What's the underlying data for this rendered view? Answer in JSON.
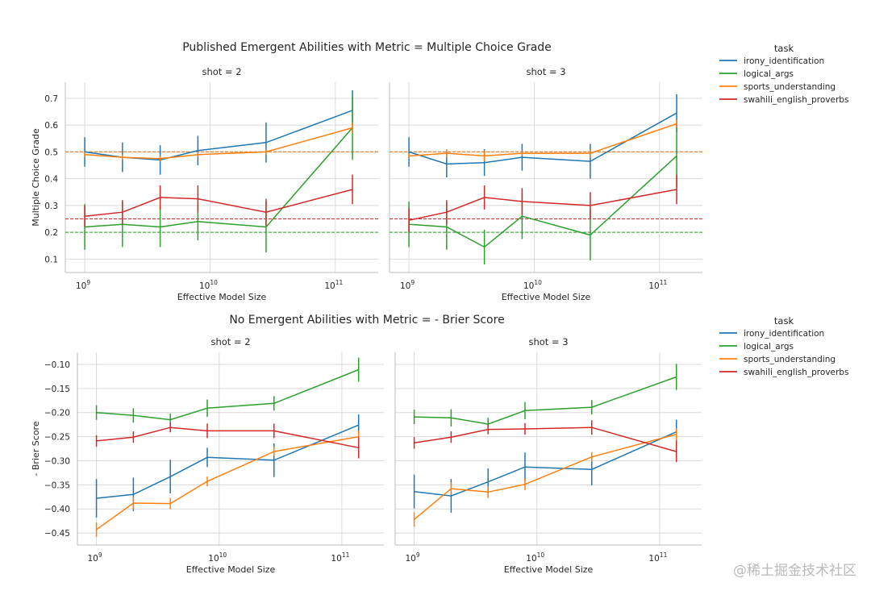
{
  "watermark": "@稀土掘金技术社区",
  "colors": {
    "irony_identification": "#1f77b4",
    "logical_args": "#2ca02c",
    "sports_understanding": "#ff7f0e",
    "swahili_english_proverbs": "#d62728",
    "grid": "#d9d9d9",
    "text": "#262626"
  },
  "chart_data": [
    {
      "type": "line",
      "title": "Published Emergent Abilities with Metric = Multiple Choice Grade",
      "ylabel": "Multiple Choice Grade",
      "xlabel": "Effective Model Size",
      "xscale": "log",
      "xlim": [
        700000000.0,
        220000000000.0
      ],
      "ylim": [
        0.05,
        0.76
      ],
      "yticks": [
        0.1,
        0.2,
        0.3,
        0.4,
        0.5,
        0.6,
        0.7
      ],
      "ytick_labels": [
        "0.1",
        "0.2",
        "0.3",
        "0.4",
        "0.5",
        "0.6",
        "0.7"
      ],
      "xticks": [
        1000000000.0,
        10000000000.0,
        100000000000.0
      ],
      "xtick_labels": [
        {
          "base": "10",
          "exp": "9"
        },
        {
          "base": "10",
          "exp": "10"
        },
        {
          "base": "10",
          "exp": "11"
        }
      ],
      "x": [
        1000000000.0,
        2000000000.0,
        4000000000.0,
        8000000000.0,
        28000000000.0,
        137000000000.0
      ],
      "legend": {
        "title": "task",
        "entries": [
          "irony_identification",
          "logical_args",
          "sports_understanding",
          "swahili_english_proverbs"
        ]
      },
      "reference_lines": [
        {
          "y": 0.5,
          "series": "irony_identification"
        },
        {
          "y": 0.5,
          "series": "sports_understanding"
        },
        {
          "y": 0.2,
          "series": "logical_args"
        },
        {
          "y": 0.25,
          "series": "swahili_english_proverbs"
        }
      ],
      "panels": [
        {
          "title": "shot = 2",
          "series": [
            {
              "name": "irony_identification",
              "values": [
                0.5,
                0.48,
                0.47,
                0.505,
                0.535,
                0.655
              ],
              "err": [
                0.055,
                0.055,
                0.055,
                0.055,
                0.075,
                0.075
              ]
            },
            {
              "name": "logical_args",
              "values": [
                0.22,
                0.23,
                0.22,
                0.24,
                0.22,
                0.59
              ],
              "err": [
                0.085,
                0.085,
                0.075,
                0.07,
                0.095,
                0.12
              ]
            },
            {
              "name": "sports_understanding",
              "values": [
                0.49,
                0.48,
                0.475,
                0.49,
                0.5,
                0.59
              ],
              "err": [
                0.01,
                0.01,
                0.01,
                0.01,
                0.01,
                0.02
              ]
            },
            {
              "name": "swahili_english_proverbs",
              "values": [
                0.26,
                0.275,
                0.33,
                0.325,
                0.275,
                0.36
              ],
              "err": [
                0.04,
                0.045,
                0.045,
                0.05,
                0.05,
                0.055
              ]
            }
          ]
        },
        {
          "title": "shot = 3",
          "series": [
            {
              "name": "irony_identification",
              "values": [
                0.5,
                0.455,
                0.46,
                0.48,
                0.465,
                0.645
              ],
              "err": [
                0.055,
                0.05,
                0.05,
                0.05,
                0.065,
                0.07
              ]
            },
            {
              "name": "logical_args",
              "values": [
                0.23,
                0.22,
                0.145,
                0.26,
                0.19,
                0.485
              ],
              "err": [
                0.085,
                0.085,
                0.065,
                0.085,
                0.095,
                0.115
              ]
            },
            {
              "name": "sports_understanding",
              "values": [
                0.485,
                0.495,
                0.485,
                0.495,
                0.495,
                0.605
              ],
              "err": [
                0.01,
                0.015,
                0.02,
                0.01,
                0.015,
                0.015
              ]
            },
            {
              "name": "swahili_english_proverbs",
              "values": [
                0.245,
                0.275,
                0.33,
                0.315,
                0.3,
                0.36
              ],
              "err": [
                0.045,
                0.045,
                0.045,
                0.05,
                0.05,
                0.055
              ]
            }
          ]
        }
      ]
    },
    {
      "type": "line",
      "title": "No Emergent Abilities with Metric = - Brier Score",
      "ylabel": "- Brier Score",
      "xlabel": "Effective Model Size",
      "xscale": "log",
      "xlim": [
        700000000.0,
        220000000000.0
      ],
      "ylim": [
        -0.475,
        -0.075
      ],
      "yticks": [
        -0.45,
        -0.4,
        -0.35,
        -0.3,
        -0.25,
        -0.2,
        -0.15,
        -0.1
      ],
      "ytick_labels": [
        "−0.45",
        "−0.40",
        "−0.35",
        "−0.30",
        "−0.25",
        "−0.20",
        "−0.15",
        "−0.10"
      ],
      "xticks": [
        1000000000.0,
        10000000000.0,
        100000000000.0
      ],
      "xtick_labels": [
        {
          "base": "10",
          "exp": "9"
        },
        {
          "base": "10",
          "exp": "10"
        },
        {
          "base": "10",
          "exp": "11"
        }
      ],
      "x": [
        1000000000.0,
        2000000000.0,
        4000000000.0,
        8000000000.0,
        28000000000.0,
        137000000000.0
      ],
      "legend": {
        "title": "task",
        "entries": [
          "irony_identification",
          "logical_args",
          "sports_understanding",
          "swahili_english_proverbs"
        ]
      },
      "reference_lines": [],
      "panels": [
        {
          "title": "shot = 2",
          "series": [
            {
              "name": "irony_identification",
              "values": [
                -0.378,
                -0.37,
                -0.333,
                -0.293,
                -0.299,
                -0.226
              ],
              "err": [
                0.04,
                0.035,
                0.035,
                0.02,
                0.035,
                0.022
              ]
            },
            {
              "name": "logical_args",
              "values": [
                -0.2,
                -0.206,
                -0.215,
                -0.191,
                -0.181,
                -0.111
              ],
              "err": [
                0.015,
                0.015,
                0.013,
                0.018,
                0.015,
                0.025
              ]
            },
            {
              "name": "sports_understanding",
              "values": [
                -0.443,
                -0.388,
                -0.389,
                -0.343,
                -0.281,
                -0.25
              ],
              "err": [
                0.015,
                0.013,
                0.012,
                0.01,
                0.01,
                0.012
              ]
            },
            {
              "name": "swahili_english_proverbs",
              "values": [
                -0.259,
                -0.251,
                -0.231,
                -0.238,
                -0.238,
                -0.273
              ],
              "err": [
                0.012,
                0.012,
                0.01,
                0.015,
                0.015,
                0.022
              ]
            }
          ]
        },
        {
          "title": "shot = 3",
          "series": [
            {
              "name": "irony_identification",
              "values": [
                -0.364,
                -0.373,
                -0.344,
                -0.313,
                -0.318,
                -0.24
              ],
              "err": [
                0.035,
                0.035,
                0.028,
                0.03,
                0.033,
                0.025
              ]
            },
            {
              "name": "logical_args",
              "values": [
                -0.209,
                -0.211,
                -0.224,
                -0.196,
                -0.189,
                -0.126
              ],
              "err": [
                0.015,
                0.018,
                0.013,
                0.018,
                0.015,
                0.027
              ]
            },
            {
              "name": "sports_understanding",
              "values": [
                -0.422,
                -0.358,
                -0.365,
                -0.349,
                -0.292,
                -0.245
              ],
              "err": [
                0.015,
                0.013,
                0.012,
                0.012,
                0.01,
                0.012
              ]
            },
            {
              "name": "swahili_english_proverbs",
              "values": [
                -0.263,
                -0.251,
                -0.235,
                -0.234,
                -0.231,
                -0.281
              ],
              "err": [
                0.012,
                0.012,
                0.01,
                0.012,
                0.015,
                0.022
              ]
            }
          ]
        }
      ]
    }
  ]
}
